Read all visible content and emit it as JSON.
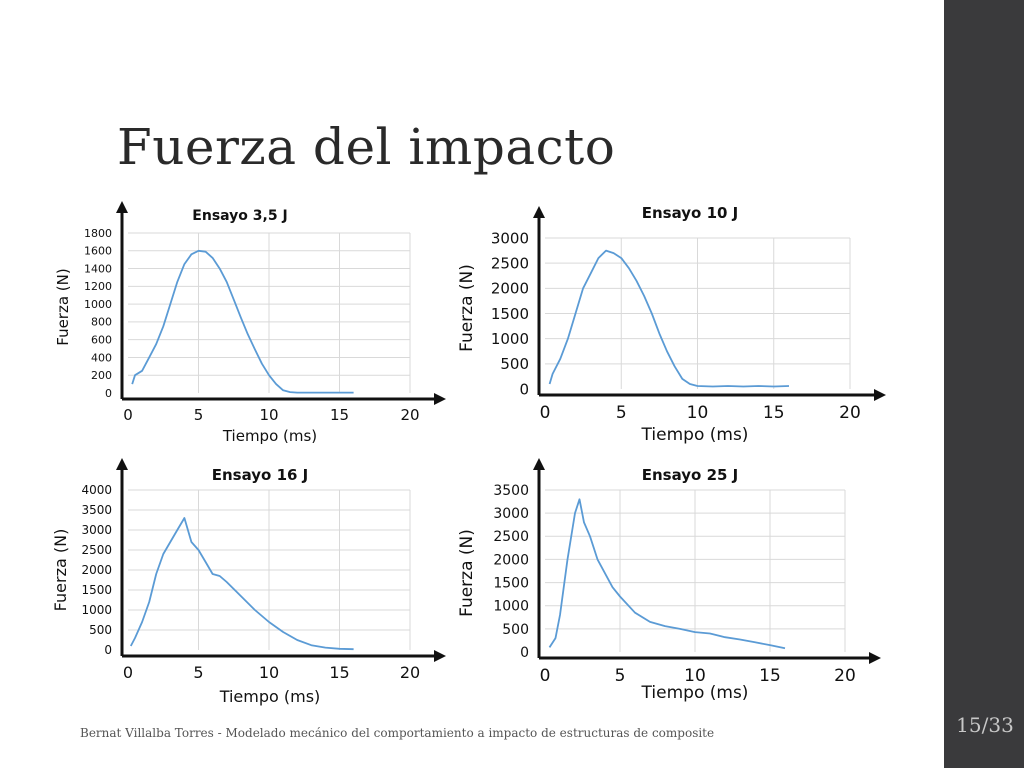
{
  "slide": {
    "title": "Fuerza del impacto",
    "footer": "Bernat Villalba Torres - Modelado mecánico del comportamiento a impacto de estructuras de composite",
    "page": "15/33"
  },
  "colors": {
    "series": "#5b9bd5",
    "sidebar": "#3a3a3c",
    "grid": "#d9d9d9"
  },
  "chart_data": [
    {
      "type": "line",
      "title": "Ensayo 3,5 J",
      "xlabel": "Tiempo (ms)",
      "ylabel": "Fuerza (N)",
      "xlim": [
        0,
        20
      ],
      "ylim": [
        0,
        1800
      ],
      "xticks": [
        0,
        5,
        10,
        15,
        20
      ],
      "yticks": [
        0,
        200,
        400,
        600,
        800,
        1000,
        1200,
        1400,
        1600,
        1800
      ],
      "grid": true,
      "series": [
        {
          "x": [
            0.3,
            0.5,
            1,
            1.5,
            2,
            2.5,
            3,
            3.5,
            4,
            4.5,
            5,
            5.5,
            6,
            6.5,
            7,
            7.5,
            8,
            8.5,
            9,
            9.5,
            10,
            10.5,
            11,
            11.5,
            12,
            13,
            14,
            15,
            16
          ],
          "y": [
            100,
            200,
            250,
            400,
            550,
            750,
            1000,
            1250,
            1450,
            1560,
            1600,
            1590,
            1520,
            1400,
            1250,
            1050,
            850,
            660,
            490,
            330,
            200,
            100,
            30,
            10,
            5,
            5,
            5,
            5,
            5
          ]
        }
      ]
    },
    {
      "type": "line",
      "title": "Ensayo 10 J",
      "xlabel": "Tiempo (ms)",
      "ylabel": "Fuerza (N)",
      "xlim": [
        0,
        20
      ],
      "ylim": [
        0,
        3000
      ],
      "xticks": [
        0,
        5,
        10,
        15,
        20
      ],
      "yticks": [
        0,
        500,
        1000,
        1500,
        2000,
        2500,
        3000
      ],
      "grid": true,
      "series": [
        {
          "x": [
            0.3,
            0.5,
            1,
            1.5,
            2,
            2.5,
            3,
            3.5,
            4,
            4.5,
            5,
            5.5,
            6,
            6.5,
            7,
            7.5,
            8,
            8.5,
            9,
            9.5,
            10,
            11,
            12,
            13,
            14,
            15,
            16
          ],
          "y": [
            100,
            300,
            600,
            1000,
            1500,
            2000,
            2300,
            2600,
            2750,
            2700,
            2600,
            2400,
            2150,
            1850,
            1500,
            1100,
            750,
            450,
            200,
            100,
            60,
            50,
            60,
            50,
            60,
            50,
            60
          ]
        }
      ]
    },
    {
      "type": "line",
      "title": "Ensayo 16 J",
      "xlabel": "Tiempo (ms)",
      "ylabel": "Fuerza (N)",
      "xlim": [
        0,
        20
      ],
      "ylim": [
        0,
        4000
      ],
      "xticks": [
        0,
        5,
        10,
        15,
        20
      ],
      "yticks": [
        0,
        500,
        1000,
        1500,
        2000,
        2500,
        3000,
        3500,
        4000
      ],
      "grid": true,
      "series": [
        {
          "x": [
            0.2,
            0.5,
            1,
            1.5,
            2,
            2.5,
            3,
            3.5,
            4,
            4.5,
            5,
            5.5,
            6,
            6.5,
            7,
            8,
            9,
            10,
            11,
            12,
            13,
            14,
            15,
            16
          ],
          "y": [
            100,
            300,
            700,
            1200,
            1900,
            2400,
            2700,
            3000,
            3300,
            2700,
            2500,
            2200,
            1900,
            1850,
            1700,
            1350,
            1000,
            700,
            450,
            250,
            120,
            60,
            30,
            20
          ]
        }
      ]
    },
    {
      "type": "line",
      "title": "Ensayo 25 J",
      "xlabel": "Tiempo (ms)",
      "ylabel": "Fuerza (N)",
      "xlim": [
        0,
        20
      ],
      "ylim": [
        0,
        3500
      ],
      "xticks": [
        0,
        5,
        10,
        15,
        20
      ],
      "yticks": [
        0,
        500,
        1000,
        1500,
        2000,
        2500,
        3000,
        3500
      ],
      "grid": true,
      "series": [
        {
          "x": [
            0.3,
            0.7,
            1,
            1.5,
            2,
            2.3,
            2.6,
            3,
            3.5,
            4,
            4.5,
            5,
            6,
            7,
            8,
            9,
            10,
            11,
            12,
            13,
            14,
            15,
            16
          ],
          "y": [
            100,
            300,
            800,
            2000,
            3000,
            3300,
            2800,
            2500,
            2000,
            1700,
            1400,
            1200,
            850,
            650,
            560,
            500,
            430,
            400,
            320,
            270,
            210,
            150,
            80
          ]
        }
      ]
    }
  ]
}
